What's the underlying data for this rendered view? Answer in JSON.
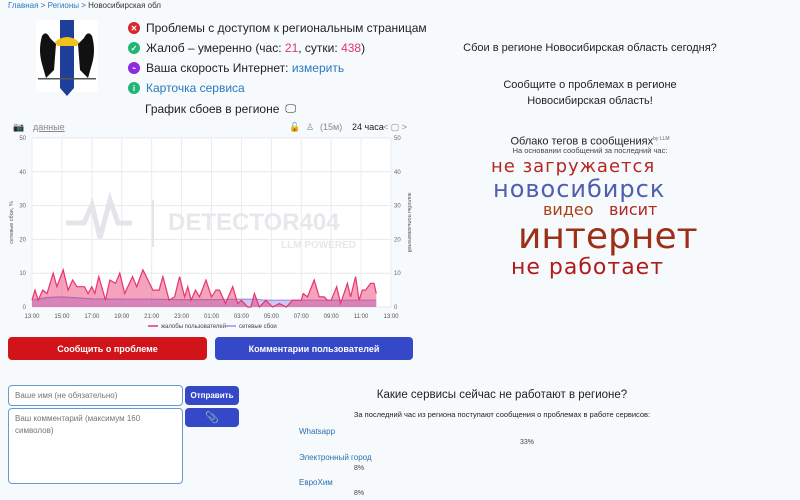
{
  "breadcrumb": {
    "home": "Главная",
    "sep": " > ",
    "regions": "Регионы",
    "current": "Новосибирская обл"
  },
  "status": {
    "access": "Проблемы с доступом к региональным страницам",
    "complaints_prefix": "Жалоб – умеренно (час: ",
    "hour": "21",
    "day_prefix": ", сутки: ",
    "day": "438",
    "suffix": ")",
    "speed_prefix": "Ваша скорость Интернет: ",
    "speed_link": "измерить",
    "card": "Карточка сервиса",
    "chart_title": "График сбоев в регионе"
  },
  "chart_controls": {
    "data_link": "данные",
    "interval": "(15м)",
    "range": "24 часа",
    "nav": "< ▢ >"
  },
  "chart_data": {
    "type": "area",
    "ylabel_left": "сетевые сбои, %",
    "ylabel_right": "жалобы пользователей",
    "ylim": [
      0,
      50
    ],
    "yticks": [
      0,
      10,
      20,
      30,
      40,
      50
    ],
    "xticks": [
      "13:00",
      "15:00",
      "17:00",
      "19:00",
      "21:00",
      "23:00",
      "01:00",
      "03:00",
      "05:00",
      "07:00",
      "09:00",
      "11:00",
      "13:00"
    ],
    "watermark": "DETECTOR404 LLM POWERED",
    "series": [
      {
        "name": "жалобы пользователей",
        "color": "#e8336c",
        "points": [
          [
            "13:00",
            2
          ],
          [
            "13:12",
            5
          ],
          [
            "13:25",
            2
          ],
          [
            "13:43",
            5
          ],
          [
            "14:00",
            4
          ],
          [
            "14:25",
            10
          ],
          [
            "14:40",
            6
          ],
          [
            "15:05",
            11
          ],
          [
            "15:25",
            5
          ],
          [
            "15:43",
            8
          ],
          [
            "16:00",
            6
          ],
          [
            "16:30",
            6
          ],
          [
            "16:45",
            4
          ],
          [
            "17:00",
            6
          ],
          [
            "17:12",
            4
          ],
          [
            "17:28",
            9
          ],
          [
            "17:55",
            2
          ],
          [
            "18:12",
            8
          ],
          [
            "18:35",
            7
          ],
          [
            "18:52",
            10
          ],
          [
            "19:12",
            4
          ],
          [
            "19:43",
            9
          ],
          [
            "20:00",
            6
          ],
          [
            "20:25",
            11
          ],
          [
            "21:05",
            5
          ],
          [
            "21:30",
            5
          ],
          [
            "21:45",
            9
          ],
          [
            "22:10",
            2
          ],
          [
            "22:32",
            3
          ],
          [
            "22:52",
            9
          ],
          [
            "23:12",
            3
          ],
          [
            "23:25",
            6
          ],
          [
            "23:38",
            2
          ],
          [
            "23:56",
            5
          ],
          [
            "00:12",
            3
          ],
          [
            "00:38",
            8
          ],
          [
            "01:00",
            3
          ],
          [
            "01:18",
            5
          ],
          [
            "01:32",
            5
          ],
          [
            "01:56",
            1
          ],
          [
            "02:25",
            6
          ],
          [
            "02:45",
            1
          ],
          [
            "03:00",
            2
          ],
          [
            "03:25",
            0
          ],
          [
            "03:38",
            0
          ],
          [
            "03:52",
            4
          ],
          [
            "04:12",
            0
          ],
          [
            "04:38",
            2
          ],
          [
            "05:05",
            0
          ],
          [
            "05:32",
            1
          ],
          [
            "06:00",
            0
          ],
          [
            "06:25",
            2
          ],
          [
            "07:00",
            2
          ],
          [
            "07:08",
            4
          ],
          [
            "07:25",
            3
          ],
          [
            "07:52",
            8
          ],
          [
            "08:12",
            3
          ],
          [
            "08:32",
            3
          ],
          [
            "08:45",
            2
          ],
          [
            "09:00",
            2
          ],
          [
            "09:22",
            6
          ],
          [
            "09:38",
            1
          ],
          [
            "10:05",
            7
          ],
          [
            "10:18",
            3
          ],
          [
            "10:38",
            9
          ],
          [
            "10:52",
            2
          ],
          [
            "11:05",
            5
          ],
          [
            "11:18",
            5
          ],
          [
            "11:38",
            7
          ],
          [
            "11:52",
            7
          ],
          [
            "12:01",
            4
          ]
        ]
      },
      {
        "name": "сетевые сбои",
        "color": "#9b8fe8",
        "points": [
          [
            "13:00",
            2
          ],
          [
            "14:00",
            2.8
          ],
          [
            "15:00",
            3
          ],
          [
            "16:00",
            2.7
          ],
          [
            "17:00",
            2.4
          ],
          [
            "19:00",
            2.3
          ],
          [
            "21:00",
            2.3
          ],
          [
            "23:00",
            2.2
          ],
          [
            "01:00",
            2.2
          ],
          [
            "03:00",
            2.3
          ],
          [
            "04:00",
            2.3
          ],
          [
            "04:30",
            2
          ],
          [
            "07:00",
            2
          ],
          [
            "09:00",
            2
          ],
          [
            "12:01",
            2
          ]
        ]
      }
    ]
  },
  "actions": {
    "report": "Сообщить о проблеме",
    "comments": "Комментарии пользователей"
  },
  "form": {
    "name_placeholder": "Ваше имя (не обязательно)",
    "comment_placeholder": "Ваш комментарий (максимум 160 символов)",
    "send": "Отправить"
  },
  "right": {
    "q1": "Сбои в регионе Новосибирская область сегодня?",
    "q2": "Сообщите о проблемах в регионе Новосибирская область!"
  },
  "tagcloud": {
    "title": "Облако тегов в сообщениях",
    "badge": "by LLM",
    "subtitle": "На основании сообщений за последний час:",
    "tags": [
      {
        "text": "не загружается",
        "color": "#b5261e"
      },
      {
        "text": "новосибирск",
        "color": "#4f5fae"
      },
      {
        "text": "видео",
        "color": "#a8401a"
      },
      {
        "text": "висит",
        "color": "#b02820"
      },
      {
        "text": "интернет",
        "color": "#9e2f17"
      },
      {
        "text": "не работает",
        "color": "#b01c1c"
      }
    ]
  },
  "services": {
    "title": "Какие сервисы сейчас не работают в регионе?",
    "subtitle": "За последний час из региона поступают сообщения о проблемах в работе сервисов:",
    "items": [
      {
        "name": "Whatsapp",
        "percent": "33%"
      },
      {
        "name": "Электронный город",
        "percent": "8%"
      },
      {
        "name": "ЕвроХим",
        "percent": "8%"
      }
    ]
  },
  "colors": {
    "report": "#d0141a",
    "comments": "#3548c8",
    "link": "#2a78c2"
  }
}
